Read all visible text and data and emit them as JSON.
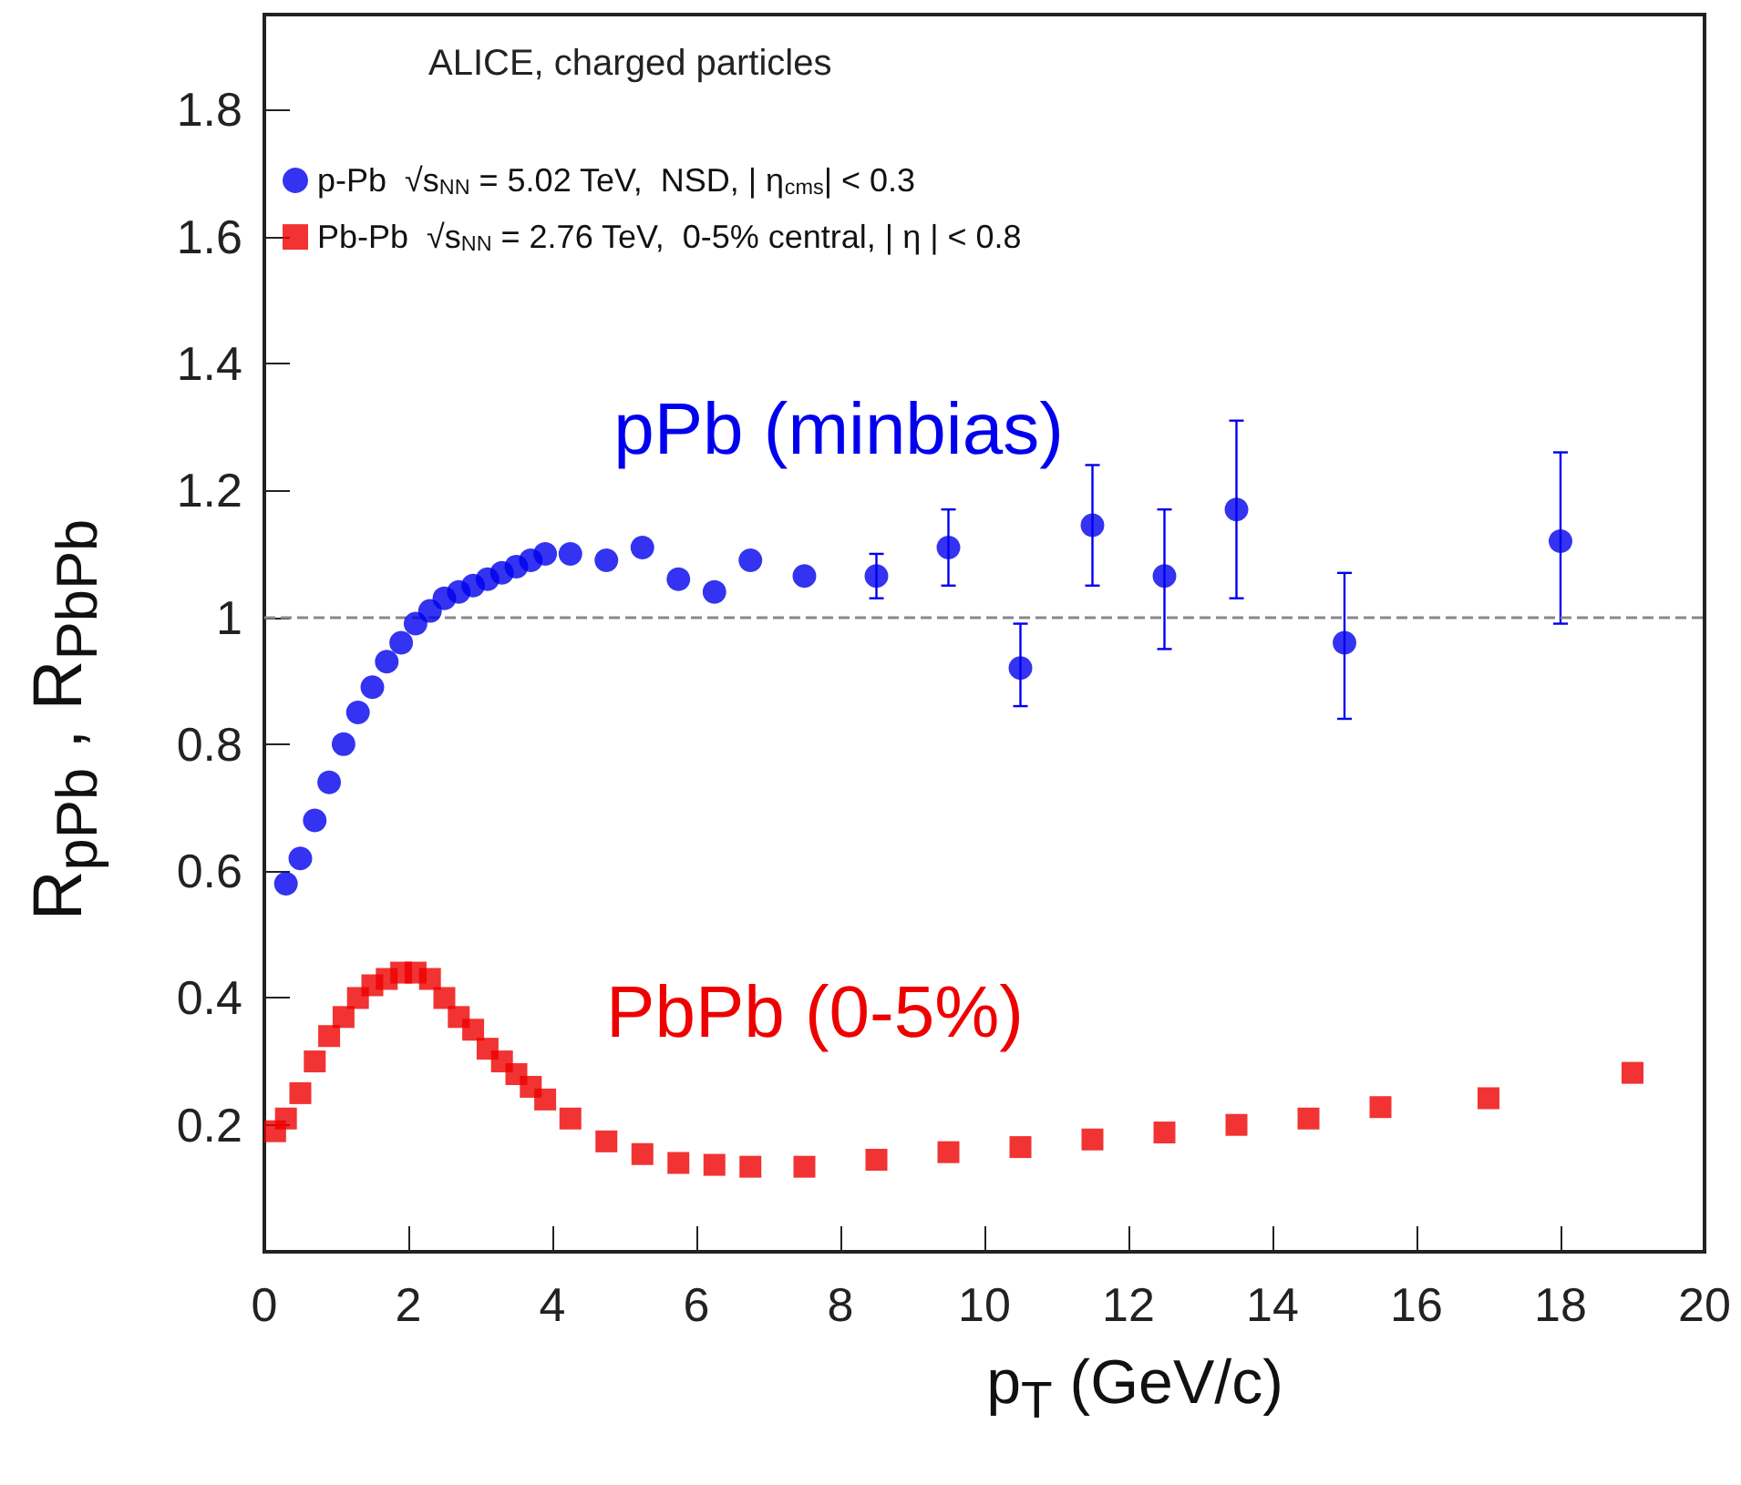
{
  "chart_data": {
    "type": "scatter",
    "xlabel": "p$_{T}$ (GeV/c)",
    "ylabel": "R$_{pPb}$ , R$_{PbPb}$",
    "legend_title": "ALICE, charged particles",
    "xlim": [
      0,
      20
    ],
    "xticks": [
      0,
      2,
      4,
      6,
      8,
      10,
      12,
      14,
      16,
      18,
      20
    ],
    "ylim": [
      0,
      1.95
    ],
    "yticks": [
      0.2,
      0.4,
      0.6,
      0.8,
      1,
      1.2,
      1.4,
      1.6,
      1.8
    ],
    "grid": false,
    "legend": "top left",
    "ref_lines": [
      {
        "axis": "y",
        "value": 1,
        "label": null,
        "color": "#888888",
        "line_style": "dashed"
      }
    ],
    "annotations": [
      "pPb (minbias)",
      "PbPb (0-5%)"
    ],
    "series": [
      {
        "name": "p-Pb  √s$_{NN}$ = 5.02 TeV,  NSD, | η$_{cms}$| < 0.3",
        "color": "#0000ee",
        "marker": "circle",
        "x": [
          0.3,
          0.5,
          0.7,
          0.9,
          1.1,
          1.3,
          1.5,
          1.7,
          1.9,
          2.1,
          2.3,
          2.5,
          2.7,
          2.9,
          3.1,
          3.3,
          3.5,
          3.7,
          3.9,
          4.25,
          4.75,
          5.25,
          5.75,
          6.25,
          6.75,
          7.5,
          8.5,
          9.5,
          10.5,
          11.5,
          12.5,
          13.5,
          15,
          18
        ],
        "values": [
          0.58,
          0.62,
          0.68,
          0.74,
          0.8,
          0.85,
          0.89,
          0.93,
          0.96,
          0.99,
          1.01,
          1.03,
          1.04,
          1.05,
          1.06,
          1.07,
          1.08,
          1.09,
          1.1,
          1.1,
          1.09,
          1.11,
          1.06,
          1.04,
          1.09,
          1.065,
          1.065,
          1.11,
          0.92,
          1.145,
          1.065,
          1.17,
          0.96,
          1.12
        ],
        "errors": [
          null,
          null,
          null,
          null,
          null,
          null,
          null,
          null,
          null,
          null,
          null,
          null,
          null,
          null,
          null,
          null,
          null,
          null,
          null,
          null,
          null,
          null,
          null,
          null,
          null,
          null,
          [
            1.03,
            1.1
          ],
          [
            1.05,
            1.17
          ],
          [
            0.86,
            0.99
          ],
          [
            1.05,
            1.24
          ],
          [
            0.95,
            1.17
          ],
          [
            1.03,
            1.31
          ],
          [
            0.84,
            1.07
          ],
          [
            0.99,
            1.26
          ]
        ]
      },
      {
        "name": "Pb-Pb  √s$_{NN}$ = 2.76 TeV,  0-5% central, | η | < 0.8",
        "color": "#ee0000",
        "marker": "square",
        "x": [
          0.15,
          0.3,
          0.5,
          0.7,
          0.9,
          1.1,
          1.3,
          1.5,
          1.7,
          1.9,
          2.1,
          2.3,
          2.5,
          2.7,
          2.9,
          3.1,
          3.3,
          3.5,
          3.7,
          3.9,
          4.25,
          4.75,
          5.25,
          5.75,
          6.25,
          6.75,
          7.5,
          8.5,
          9.5,
          10.5,
          11.5,
          12.5,
          13.5,
          14.5,
          15.5,
          17,
          19
        ],
        "values": [
          0.19,
          0.21,
          0.25,
          0.3,
          0.34,
          0.37,
          0.4,
          0.42,
          0.43,
          0.44,
          0.44,
          0.43,
          0.4,
          0.37,
          0.35,
          0.32,
          0.3,
          0.28,
          0.26,
          0.24,
          0.21,
          0.174,
          0.154,
          0.14,
          0.137,
          0.134,
          0.134,
          0.145,
          0.157,
          0.165,
          0.177,
          0.188,
          0.2,
          0.21,
          0.228,
          0.242,
          0.282
        ]
      }
    ]
  }
}
